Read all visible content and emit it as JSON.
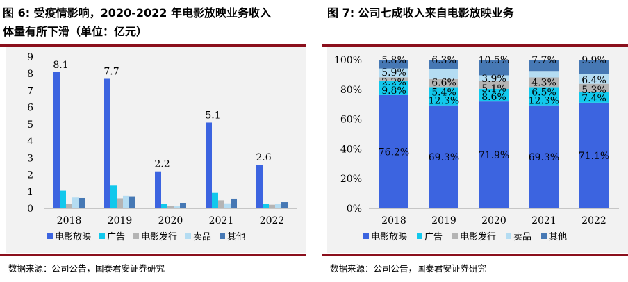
{
  "left": {
    "title_line1": "图 6: 受疫情影响，2020-2022 年电影放映业务收入",
    "title_line2": "体量有所下滑（单位：亿元）",
    "source": "数据来源：公司公告，国泰君安证券研究"
  },
  "right": {
    "title": "图 7:  公司七成收入来自电影放映业务",
    "source": "数据来源：公司公告，国泰君安证券研究"
  },
  "colors": {
    "电影放映": "#3c64e0",
    "广告": "#12c8ec",
    "电影发行": "#b4b4b4",
    "卖品": "#b4dcf2",
    "其他": "#4678b4"
  },
  "chart_data": [
    {
      "type": "bar",
      "categories": [
        "2018",
        "2019",
        "2020",
        "2021",
        "2022"
      ],
      "ylim": [
        0,
        9
      ],
      "yticks": [
        0,
        1,
        2,
        3,
        4,
        5,
        6,
        7,
        8,
        9
      ],
      "series": [
        {
          "name": "电影放映",
          "values": [
            8.1,
            7.7,
            2.2,
            5.1,
            2.6
          ],
          "labels": [
            "8.1",
            "7.7",
            "2.2",
            "5.1",
            "2.6"
          ]
        },
        {
          "name": "广告",
          "values": [
            1.05,
            1.35,
            0.28,
            0.92,
            0.28
          ]
        },
        {
          "name": "电影发行",
          "values": [
            0.25,
            0.6,
            0.15,
            0.48,
            0.22
          ]
        },
        {
          "name": "卖品",
          "values": [
            0.65,
            0.75,
            0.12,
            0.3,
            0.28
          ]
        },
        {
          "name": "其他",
          "values": [
            0.62,
            0.72,
            0.33,
            0.58,
            0.37
          ]
        }
      ],
      "legend": "bottom"
    },
    {
      "type": "bar",
      "stacked": true,
      "categories": [
        "2018",
        "2019",
        "2020",
        "2021",
        "2022"
      ],
      "ylim": [
        0,
        100
      ],
      "yticks": [
        "0%",
        "20%",
        "40%",
        "60%",
        "80%",
        "100%"
      ],
      "series": [
        {
          "name": "电影放映",
          "values": [
            76.2,
            69.3,
            71.9,
            69.3,
            71.1
          ],
          "labels": [
            "76.2%",
            "69.3%",
            "71.9%",
            "69.3%",
            "71.1%"
          ]
        },
        {
          "name": "广告",
          "values": [
            9.8,
            12.3,
            8.6,
            12.3,
            7.4
          ],
          "labels": [
            "9.8%",
            "12.3%",
            "8.6%",
            "12.3%",
            "7.4%"
          ]
        },
        {
          "name": "电影发行",
          "values": [
            2.2,
            5.4,
            5.1,
            6.5,
            5.3
          ],
          "labels": [
            "2.2%",
            "5.4%",
            "5.1%",
            "6.5%",
            "5.3%"
          ]
        },
        {
          "name": "卖品",
          "values": [
            5.9,
            6.6,
            3.9,
            4.3,
            6.4
          ],
          "labels": [
            "5.9%",
            "6.6%",
            "3.9%",
            "4.3%",
            "6.4%"
          ]
        },
        {
          "name": "其他",
          "values": [
            5.8,
            6.3,
            10.5,
            7.7,
            9.9
          ],
          "labels": [
            "5.8%",
            "6.3%",
            "10.5%",
            "7.7%",
            "9.9%"
          ]
        }
      ],
      "legend": "bottom"
    }
  ]
}
